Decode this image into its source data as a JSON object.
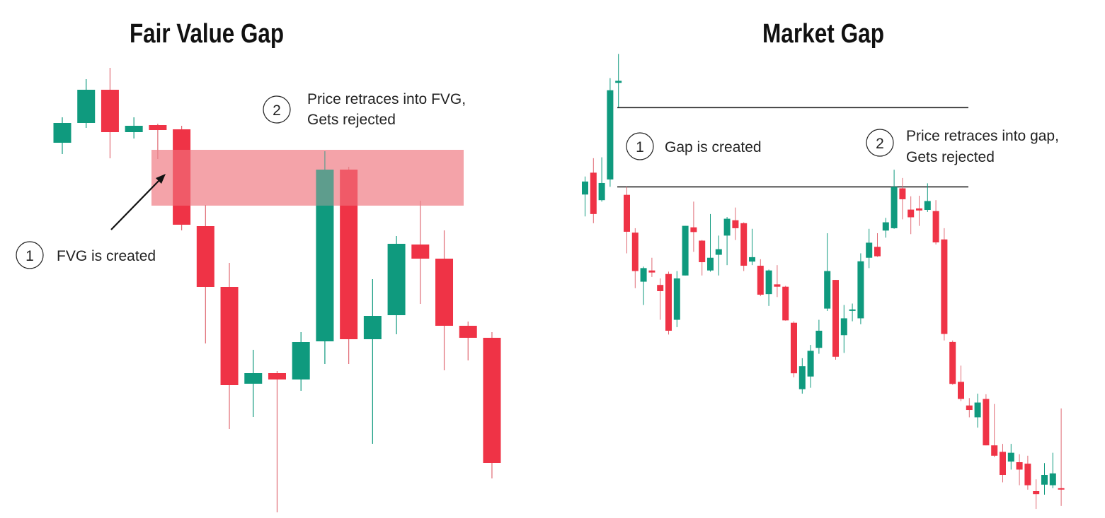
{
  "colors": {
    "bull": "#0f9a7e",
    "bear": "#ef3346",
    "wick_bull": "#0f9a7e",
    "wick_bear": "#e06a74",
    "zone": "#f4a3aa",
    "line": "#222222"
  },
  "chart_data": [
    {
      "type": "candlestick",
      "title": "Fair Value Gap",
      "xlabel": "",
      "ylabel": "",
      "grid": false,
      "zone": {
        "top": 58.8,
        "bottom": 50.9
      },
      "annotations": [
        {
          "number": "1",
          "lines": [
            "FVG is created"
          ]
        },
        {
          "number": "2",
          "lines": [
            "Price retraces into FVG,",
            "Gets rejected"
          ]
        }
      ],
      "candles": [
        {
          "o": 59.8,
          "h": 63.4,
          "l": 58.2,
          "c": 62.6
        },
        {
          "o": 62.6,
          "h": 68.8,
          "l": 61.9,
          "c": 67.3
        },
        {
          "o": 67.3,
          "h": 70.4,
          "l": 57.6,
          "c": 61.3
        },
        {
          "o": 61.3,
          "h": 63.4,
          "l": 60.4,
          "c": 62.2
        },
        {
          "o": 62.3,
          "h": 62.5,
          "l": 57.5,
          "c": 61.6
        },
        {
          "o": 61.7,
          "h": 62.2,
          "l": 47.4,
          "c": 48.2
        },
        {
          "o": 48.0,
          "h": 51.0,
          "l": 31.4,
          "c": 39.4
        },
        {
          "o": 39.4,
          "h": 42.8,
          "l": 19.3,
          "c": 25.5
        },
        {
          "o": 25.7,
          "h": 30.5,
          "l": 21.0,
          "c": 27.2
        },
        {
          "o": 27.2,
          "h": 27.5,
          "l": 7.5,
          "c": 26.3
        },
        {
          "o": 26.3,
          "h": 33.0,
          "l": 24.7,
          "c": 31.6
        },
        {
          "o": 31.7,
          "h": 58.6,
          "l": 28.5,
          "c": 56.0
        },
        {
          "o": 56.0,
          "h": 56.4,
          "l": 28.5,
          "c": 32.0
        },
        {
          "o": 32.0,
          "h": 40.5,
          "l": 17.2,
          "c": 35.3
        },
        {
          "o": 35.4,
          "h": 46.6,
          "l": 32.7,
          "c": 45.5
        },
        {
          "o": 45.4,
          "h": 51.6,
          "l": 37.0,
          "c": 43.4
        },
        {
          "o": 43.4,
          "h": 47.4,
          "l": 27.6,
          "c": 33.9
        },
        {
          "o": 33.9,
          "h": 34.5,
          "l": 29.0,
          "c": 32.2
        },
        {
          "o": 32.2,
          "h": 33.0,
          "l": 12.3,
          "c": 14.5
        }
      ]
    },
    {
      "type": "candlestick",
      "title": "Market Gap",
      "xlabel": "",
      "ylabel": "",
      "grid": false,
      "gap_lines": [
        140.3,
        113.5
      ],
      "annotations": [
        {
          "number": "1",
          "lines": [
            "Gap is created"
          ]
        },
        {
          "number": "2",
          "lines": [
            "Price retraces into gap,",
            "Gets rejected"
          ]
        }
      ],
      "candles": [
        {
          "o": 110.9,
          "h": 117,
          "l": 103.5,
          "c": 115.3
        },
        {
          "o": 118.3,
          "h": 123.2,
          "l": 101.2,
          "c": 104.3
        },
        {
          "o": 109,
          "h": 123.5,
          "l": 108.5,
          "c": 114.8
        },
        {
          "o": 116,
          "h": 150.3,
          "l": 113.5,
          "c": 146.2
        },
        {
          "o": 148.7,
          "h": 158.5,
          "l": 140.5,
          "c": 149.4
        },
        {
          "o": 110.8,
          "h": 113.5,
          "l": 91,
          "c": 98.3
        },
        {
          "o": 98,
          "h": 99.5,
          "l": 79.2,
          "c": 85
        },
        {
          "o": 81.4,
          "h": 86.5,
          "l": 73.5,
          "c": 86
        },
        {
          "o": 85.2,
          "h": 89.5,
          "l": 83,
          "c": 84.5
        },
        {
          "o": 80.3,
          "h": 82.5,
          "l": 68.5,
          "c": 78.2
        },
        {
          "o": 84,
          "h": 84.8,
          "l": 63.5,
          "c": 64.8
        },
        {
          "o": 68.5,
          "h": 85,
          "l": 66,
          "c": 82.5
        },
        {
          "o": 83.5,
          "h": 100.3,
          "l": 83.5,
          "c": 100.3
        },
        {
          "o": 99.8,
          "h": 108.5,
          "l": 91.5,
          "c": 98.2
        },
        {
          "o": 95.3,
          "h": 95.5,
          "l": 83.5,
          "c": 88
        },
        {
          "o": 85.2,
          "h": 104.3,
          "l": 84.8,
          "c": 89.5
        },
        {
          "o": 90.5,
          "h": 97,
          "l": 83.5,
          "c": 92.4
        },
        {
          "o": 97,
          "h": 103.3,
          "l": 87,
          "c": 102.7
        },
        {
          "o": 102.2,
          "h": 106.5,
          "l": 95.5,
          "c": 99.5
        },
        {
          "o": 101.2,
          "h": 101.5,
          "l": 85,
          "c": 86.8
        },
        {
          "o": 88.2,
          "h": 99.3,
          "l": 87,
          "c": 89.7
        },
        {
          "o": 86.8,
          "h": 89,
          "l": 76.5,
          "c": 77
        },
        {
          "o": 77.2,
          "h": 85.5,
          "l": 73.2,
          "c": 85.2
        },
        {
          "o": 80.5,
          "h": 87,
          "l": 76.2,
          "c": 79.7
        },
        {
          "o": 79.7,
          "h": 80,
          "l": 68.2,
          "c": 68.3
        },
        {
          "o": 67.5,
          "h": 68,
          "l": 49,
          "c": 50.4
        },
        {
          "o": 45,
          "h": 55.5,
          "l": 43.5,
          "c": 52.8
        },
        {
          "o": 49.3,
          "h": 60,
          "l": 45.5,
          "c": 58
        },
        {
          "o": 59,
          "h": 68.5,
          "l": 57,
          "c": 64.8
        },
        {
          "o": 72.3,
          "h": 97.8,
          "l": 71.5,
          "c": 85
        },
        {
          "o": 82,
          "h": 82,
          "l": 55,
          "c": 56
        },
        {
          "o": 63.3,
          "h": 73.5,
          "l": 57.3,
          "c": 69
        },
        {
          "o": 71.7,
          "h": 74,
          "l": 68,
          "c": 72
        },
        {
          "o": 69,
          "h": 91,
          "l": 67,
          "c": 88.3
        },
        {
          "o": 89.5,
          "h": 99.3,
          "l": 86,
          "c": 94.6
        },
        {
          "o": 93.2,
          "h": 97.8,
          "l": 89.8,
          "c": 90
        },
        {
          "o": 98.7,
          "h": 103,
          "l": 96.3,
          "c": 101.5
        },
        {
          "o": 99.5,
          "h": 119.3,
          "l": 99.3,
          "c": 113.5
        },
        {
          "o": 113,
          "h": 116.5,
          "l": 102.5,
          "c": 109.3
        },
        {
          "o": 105.8,
          "h": 110.3,
          "l": 97.5,
          "c": 103.2
        },
        {
          "o": 106.2,
          "h": 110.5,
          "l": 100.3,
          "c": 105.5
        },
        {
          "o": 105.7,
          "h": 114.7,
          "l": 105,
          "c": 108.7
        },
        {
          "o": 105.3,
          "h": 109,
          "l": 94,
          "c": 94.7
        },
        {
          "o": 95.7,
          "h": 99.5,
          "l": 61.5,
          "c": 63.7
        },
        {
          "o": 61,
          "h": 61.5,
          "l": 46.5,
          "c": 46.8
        },
        {
          "o": 47.5,
          "h": 53,
          "l": 41,
          "c": 41.7
        },
        {
          "o": 39.5,
          "h": 42,
          "l": 35.5,
          "c": 38
        },
        {
          "o": 35.5,
          "h": 43.5,
          "l": 32,
          "c": 40.5
        },
        {
          "o": 41.7,
          "h": 43.3,
          "l": 26,
          "c": 26
        },
        {
          "o": 26,
          "h": 40,
          "l": 22,
          "c": 22.5
        },
        {
          "o": 23.8,
          "h": 26.5,
          "l": 13.5,
          "c": 16
        },
        {
          "o": 20.5,
          "h": 26.5,
          "l": 17.8,
          "c": 23.5
        },
        {
          "o": 20.3,
          "h": 23,
          "l": 12.5,
          "c": 17.8
        },
        {
          "o": 19.8,
          "h": 22.5,
          "l": 11,
          "c": 12.5
        },
        {
          "o": 10.5,
          "h": 14.5,
          "l": 4.5,
          "c": 9.5
        },
        {
          "o": 12.7,
          "h": 20,
          "l": 9.3,
          "c": 16
        },
        {
          "o": 12.5,
          "h": 23.5,
          "l": 11.5,
          "c": 16.5
        },
        {
          "o": 11.5,
          "h": 38.5,
          "l": 5.5,
          "c": 11.2
        }
      ]
    }
  ]
}
